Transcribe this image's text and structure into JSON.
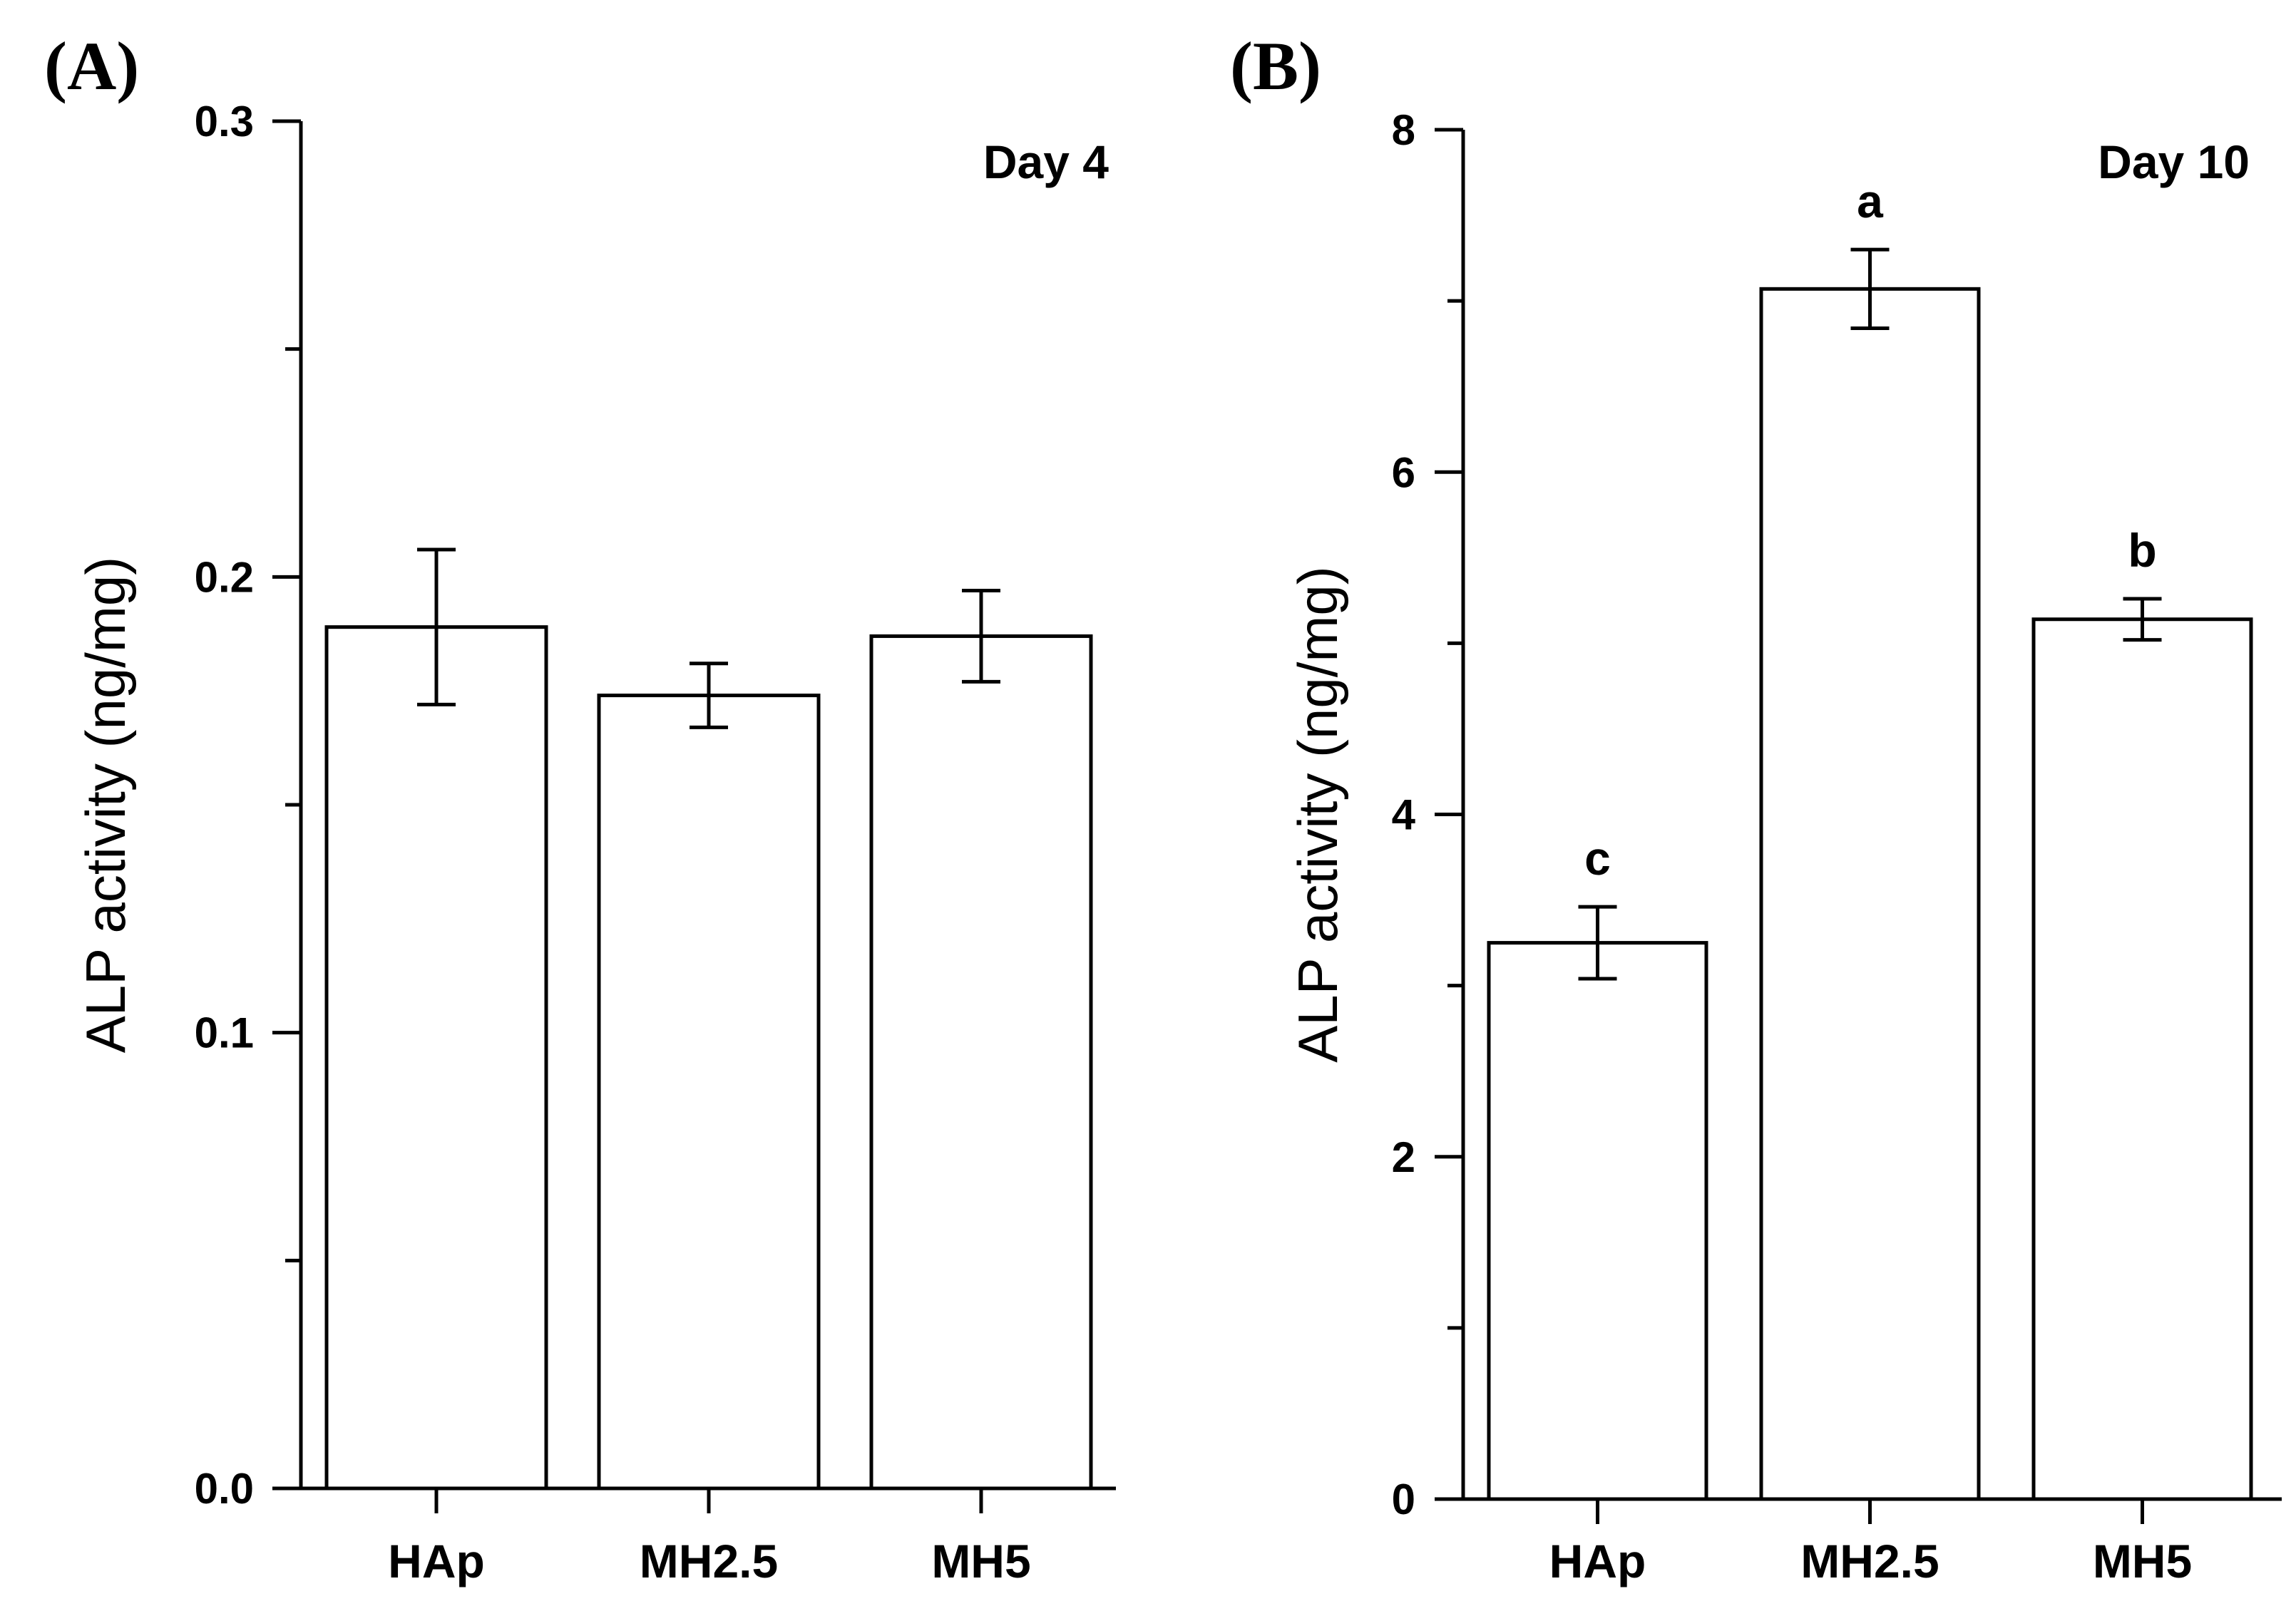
{
  "chart_data": [
    {
      "type": "bar",
      "panel": "(A)",
      "annotation": "Day 4",
      "title": "",
      "xlabel": "",
      "ylabel": "ALP activity (ng/mg)",
      "ylim": [
        0,
        0.3
      ],
      "yticks": [
        "0.0",
        "0.1",
        "0.2",
        "0.3"
      ],
      "ytick_values": [
        0,
        0.1,
        0.2,
        0.3
      ],
      "minor_ticks": [
        0.05,
        0.15,
        0.25
      ],
      "categories": [
        "HAp",
        "MH2.5",
        "MH5"
      ],
      "values": [
        0.189,
        0.174,
        0.187
      ],
      "errors": [
        0.017,
        0.007,
        0.01
      ],
      "significance": [
        "",
        "",
        ""
      ]
    },
    {
      "type": "bar",
      "panel": "(B)",
      "annotation": "Day 10",
      "title": "",
      "xlabel": "",
      "ylabel": "ALP activity (ng/mg)",
      "ylim": [
        0,
        8
      ],
      "yticks": [
        "0",
        "2",
        "4",
        "6",
        "8"
      ],
      "ytick_values": [
        0,
        2,
        4,
        6,
        8
      ],
      "minor_ticks": [
        1,
        3,
        5,
        7
      ],
      "categories": [
        "HAp",
        "MH2.5",
        "MH5"
      ],
      "values": [
        3.25,
        7.07,
        5.14
      ],
      "errors": [
        0.21,
        0.23,
        0.12
      ],
      "significance": [
        "c",
        "a",
        "b"
      ]
    }
  ]
}
